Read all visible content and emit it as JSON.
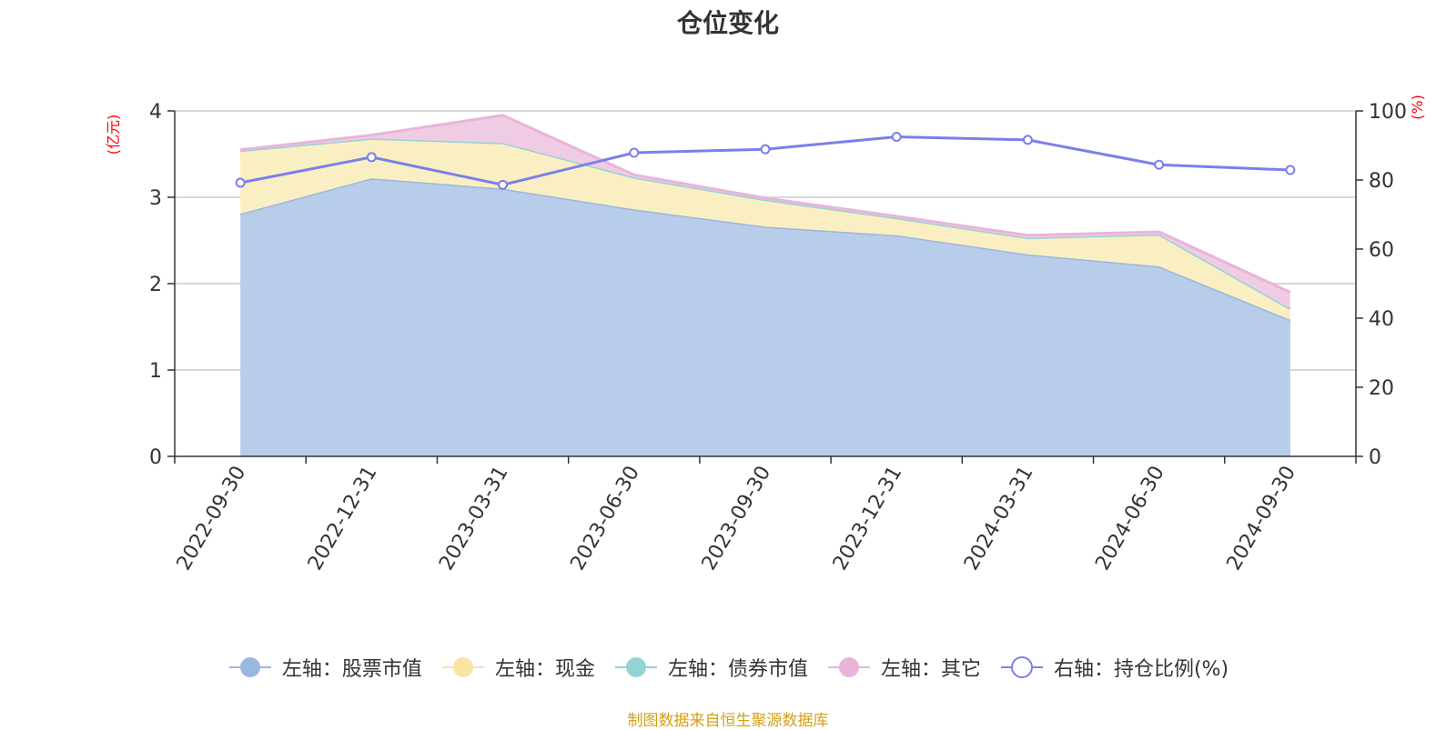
{
  "chart_data": {
    "type": "area",
    "title": "仓位变化",
    "categories": [
      "2022-09-30",
      "2022-12-31",
      "2023-03-31",
      "2023-06-30",
      "2023-09-30",
      "2023-12-31",
      "2024-03-31",
      "2024-06-30",
      "2024-09-30"
    ],
    "left_axis": {
      "unit_label": "(亿元)",
      "ylim": [
        0,
        4
      ],
      "ticks": [
        "0",
        "1",
        "2",
        "3",
        "4"
      ],
      "color": "#ff0000"
    },
    "right_axis": {
      "unit_label": "(%)",
      "ylim": [
        0,
        100
      ],
      "ticks": [
        "0",
        "20",
        "40",
        "60",
        "80",
        "100"
      ],
      "color": "#ff0000"
    },
    "grid": true,
    "stacked": true,
    "series": [
      {
        "name": "左轴：股票市值",
        "axis": "left",
        "type": "area",
        "color": "#9ab7e0",
        "fill": "#b8cdea",
        "values": [
          2.81,
          3.22,
          3.1,
          2.86,
          2.66,
          2.56,
          2.34,
          2.2,
          1.58
        ]
      },
      {
        "name": "左轴：现金",
        "axis": "left",
        "type": "area",
        "color": "#f9e4a3",
        "fill": "#faefc2",
        "values": [
          0.73,
          0.46,
          0.53,
          0.37,
          0.31,
          0.2,
          0.19,
          0.37,
          0.13
        ]
      },
      {
        "name": "左轴：债券市值",
        "axis": "left",
        "type": "area",
        "color": "#93d3d6",
        "fill": "#93d3d6",
        "values": [
          0,
          0,
          0,
          0,
          0,
          0,
          0,
          0,
          0
        ]
      },
      {
        "name": "左轴：其它",
        "axis": "left",
        "type": "area",
        "color": "#e9b4da",
        "fill": "#efcce4",
        "values": [
          0.01,
          0.04,
          0.32,
          0.03,
          0.02,
          0.02,
          0.03,
          0.03,
          0.19
        ]
      },
      {
        "name": "右轴：持仓比例(%)",
        "axis": "right",
        "type": "line",
        "color": "#7b7fea",
        "values": [
          79.2,
          86.6,
          78.6,
          87.9,
          88.9,
          92.5,
          91.6,
          84.4,
          82.9
        ]
      }
    ],
    "legend_position": "bottom"
  },
  "source_note": "制图数据来自恒生聚源数据库",
  "source_note_color": "#d4a017"
}
